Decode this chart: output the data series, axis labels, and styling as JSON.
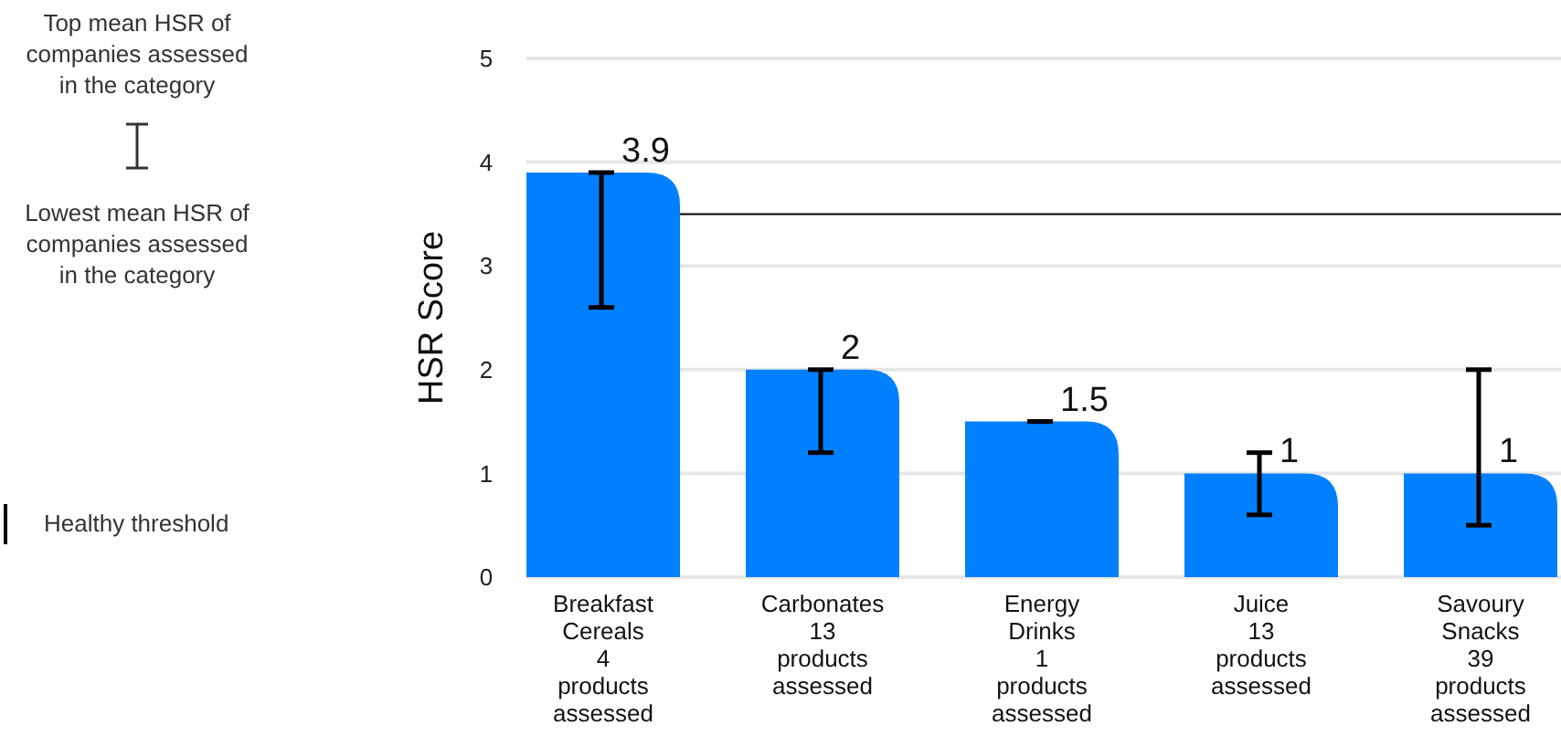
{
  "chart_data": {
    "type": "bar",
    "ylabel": "HSR Score",
    "categories": [
      "Breakfast\nCereals\n4\nproducts\nassessed",
      "Carbonates\n\n13\nproducts\nassessed",
      "Energy\nDrinks\n1\nproducts\nassessed",
      "Juice\n\n13\nproducts\nassessed",
      "Savoury\nSnacks\n39\nproducts\nassessed"
    ],
    "values": [
      3.9,
      2,
      1.5,
      1,
      1
    ],
    "color": "#0080ff",
    "errors": [
      [
        2.6,
        3.9
      ],
      [
        1.2,
        2.0
      ],
      [
        1.5,
        1.5
      ],
      [
        0.6,
        1.2
      ],
      [
        0.5,
        2.0
      ]
    ],
    "data_labels": true,
    "ylim": [
      0,
      5
    ],
    "yticks": [
      0,
      1,
      2,
      3,
      4,
      5
    ],
    "grid": "y",
    "ref_lines": [
      {
        "axis": "y",
        "value": 3.5,
        "label": "Healthy threshold",
        "color": "#000000"
      }
    ],
    "annotations": [
      "Top mean HSR of\ncompanies assessed\nin the category",
      "Lowest mean HSR of\ncompanies assessed\nin the category"
    ],
    "legend": "left"
  }
}
